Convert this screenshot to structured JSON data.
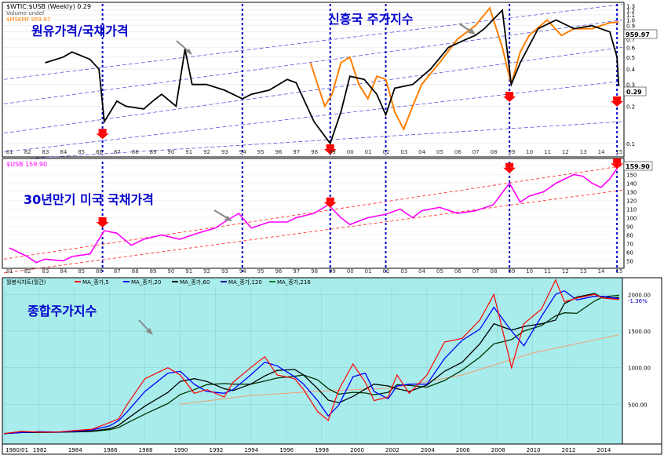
{
  "panel1": {
    "header_lines": [
      "$WTIC:$USB (Weekly) 0.29",
      "Volume undef",
      "$MSEMF 959.97"
    ],
    "annotation_oil": "원유가격/국채가격",
    "annotation_em": "신흥국 주가지수",
    "last_value_label": "959.97",
    "ratio_value_label": "0.29",
    "colors": {
      "ratio": "#000000",
      "em": "#ff7f00",
      "highlight": "#ff0000",
      "marker": "#ff0000",
      "dashed": "#0000cc"
    }
  },
  "panel2": {
    "header": "$USB 159.90",
    "annotation": "30년만기 미국 국채가격",
    "last_value_label": "159.90",
    "colors": {
      "line": "#ff00ff",
      "channel": "#ff3333"
    }
  },
  "panel3": {
    "header": "월봉식차트(월간)",
    "legend": [
      {
        "label": "MA_종가,5",
        "color": "#ff0000"
      },
      {
        "label": "MA_종가,20",
        "color": "#0000ff"
      },
      {
        "label": "MA_종가,60",
        "color": "#000000"
      },
      {
        "label": "MA_종가,120",
        "color": "#0000aa"
      },
      {
        "label": "MA_종가,216",
        "color": "#008000"
      }
    ],
    "annotation": "종합주가지수",
    "value_labels": [
      "2000.00",
      "1500.00",
      "1000.00",
      "500.00"
    ],
    "side_small_labels": [
      "-1.36%"
    ],
    "background": "#a9ecec"
  },
  "chart_data": [
    {
      "type": "line",
      "title": "$WTIC:$USB (Weekly) 0.29",
      "axis_scale": "log",
      "x_tick_labels": [
        "81",
        "82",
        "83",
        "84",
        "85",
        "86",
        "87",
        "88",
        "89",
        "90",
        "91",
        "92",
        "93",
        "94",
        "95",
        "96",
        "97",
        "98",
        "99",
        "00",
        "01",
        "02",
        "03",
        "04",
        "05",
        "06",
        "07",
        "08",
        "09",
        "10",
        "11",
        "12",
        "13",
        "14",
        "15"
      ],
      "y_tick_labels": [
        "1.3",
        "1.2",
        "1.1",
        "1.0",
        "0.9",
        "0.8",
        "0.7",
        "0.6",
        "0.5",
        "0.4",
        "0.3",
        "0.2",
        "0.1"
      ],
      "ylim": [
        0.08,
        1.35
      ],
      "series": [
        {
          "name": "$WTIC:$USB",
          "x": [
            1983.0,
            1984.0,
            1984.5,
            1985.5,
            1986.0,
            1986.3,
            1987.0,
            1987.5,
            1988.5,
            1989.0,
            1989.5,
            1990.3,
            1990.8,
            1991.2,
            1992.0,
            1993.0,
            1994.0,
            1994.5,
            1995.5,
            1996.5,
            1997.0,
            1998.0,
            1998.9,
            1999.5,
            2000.0,
            2000.8,
            2001.5,
            2002.0,
            2002.5,
            2003.5,
            2004.5,
            2005.5,
            2006.5,
            2007.0,
            2007.5,
            2008.5,
            2009.0,
            2009.5,
            2010.5,
            2011.5,
            2012.5,
            2013.5,
            2014.0,
            2014.5,
            2014.9,
            2015.0
          ],
          "y": [
            0.45,
            0.5,
            0.55,
            0.48,
            0.4,
            0.15,
            0.22,
            0.2,
            0.19,
            0.22,
            0.25,
            0.2,
            0.58,
            0.3,
            0.3,
            0.27,
            0.23,
            0.25,
            0.27,
            0.33,
            0.31,
            0.15,
            0.1,
            0.18,
            0.35,
            0.33,
            0.25,
            0.17,
            0.28,
            0.3,
            0.4,
            0.6,
            0.7,
            0.75,
            0.85,
            1.2,
            0.3,
            0.45,
            0.85,
            1.0,
            0.85,
            0.9,
            0.85,
            0.8,
            0.5,
            0.29
          ]
        },
        {
          "name": "$MSEMF",
          "x": [
            1997.8,
            1998.2,
            1998.6,
            1999.0,
            1999.5,
            2000.0,
            2000.5,
            2001.0,
            2001.5,
            2002.0,
            2002.5,
            2003.0,
            2003.5,
            2004.0,
            2005.0,
            2006.0,
            2007.0,
            2007.8,
            2008.5,
            2009.0,
            2009.5,
            2010.0,
            2011.0,
            2011.8,
            2012.5,
            2013.5,
            2014.0,
            2014.5,
            2015.0
          ],
          "y": [
            0.45,
            0.3,
            0.2,
            0.25,
            0.45,
            0.5,
            0.3,
            0.23,
            0.35,
            0.33,
            0.18,
            0.13,
            0.2,
            0.3,
            0.45,
            0.7,
            0.9,
            1.25,
            0.6,
            0.3,
            0.55,
            0.75,
            1.0,
            0.75,
            0.85,
            0.85,
            0.9,
            0.95,
            0.96
          ]
        }
      ],
      "markers_years": [
        1986.2,
        1998.9,
        2008.9,
        2014.9
      ]
    },
    {
      "type": "line",
      "title": "$USB 159.90",
      "x_tick_labels": [
        "81",
        "82",
        "83",
        "84",
        "85",
        "86",
        "87",
        "88",
        "89",
        "90",
        "91",
        "92",
        "93",
        "94",
        "95",
        "96",
        "97",
        "98",
        "99",
        "00",
        "01",
        "02",
        "03",
        "04",
        "05",
        "06",
        "07",
        "08",
        "09",
        "10",
        "11",
        "12",
        "13",
        "14",
        "15"
      ],
      "y_tick_labels": [
        "160",
        "150",
        "140",
        "130",
        "120",
        "110",
        "100",
        "90",
        "80",
        "70",
        "60",
        "50"
      ],
      "ylim": [
        45,
        165
      ],
      "series": [
        {
          "name": "$USB",
          "x": [
            1981.0,
            1981.5,
            1982.0,
            1982.5,
            1983.0,
            1984.0,
            1984.5,
            1985.5,
            1986.0,
            1986.3,
            1987.0,
            1987.8,
            1988.5,
            1989.5,
            1990.5,
            1991.5,
            1992.5,
            1993.0,
            1993.8,
            1994.5,
            1995.5,
            1996.5,
            1997.0,
            1998.0,
            1998.8,
            1999.5,
            2000.0,
            2001.0,
            2002.0,
            2002.8,
            2003.5,
            2004.0,
            2005.0,
            2006.0,
            2007.0,
            2008.0,
            2008.9,
            2009.5,
            2010.0,
            2010.8,
            2011.5,
            2012.0,
            2012.5,
            2013.0,
            2013.5,
            2014.0,
            2014.5,
            2015.0
          ],
          "y": [
            65,
            60,
            55,
            48,
            52,
            50,
            55,
            58,
            75,
            85,
            82,
            68,
            75,
            80,
            75,
            82,
            88,
            95,
            105,
            88,
            95,
            95,
            100,
            105,
            115,
            100,
            92,
            100,
            104,
            110,
            100,
            108,
            112,
            105,
            108,
            115,
            140,
            118,
            125,
            130,
            140,
            145,
            150,
            148,
            140,
            135,
            145,
            160
          ]
        }
      ],
      "markers_years": [
        1986.2,
        1998.9,
        2008.9,
        2014.9
      ]
    },
    {
      "type": "line",
      "title": "월봉식차트(월간)",
      "x_tick_labels": [
        "1980/01",
        "1982",
        "1984",
        "1986",
        "1988",
        "1990",
        "1992",
        "1994",
        "1996",
        "1998",
        "2000",
        "2002",
        "2004",
        "2006",
        "2008",
        "2010",
        "2012",
        "2014"
      ],
      "y_tick_labels": [
        "2000.00",
        "1500.00",
        "1000.00",
        "500.00"
      ],
      "ylim": [
        0,
        2100
      ],
      "series": [
        {
          "name": "종합주가지수",
          "x": [
            1980.0,
            1981.0,
            1982.0,
            1983.0,
            1984.0,
            1985.0,
            1986.0,
            1986.5,
            1987.0,
            1988.0,
            1989.3,
            1990.0,
            1990.8,
            1991.5,
            1992.5,
            1993.0,
            1994.0,
            1994.8,
            1995.5,
            1996.5,
            1997.0,
            1997.8,
            1998.4,
            1999.0,
            1999.8,
            2000.5,
            2001.0,
            2001.8,
            2002.3,
            2003.0,
            2004.0,
            2005.0,
            2006.0,
            2007.0,
            2007.8,
            2008.8,
            2009.5,
            2010.5,
            2011.3,
            2011.8,
            2012.5,
            2013.5,
            2014.0,
            2014.9
          ],
          "y": [
            100,
            130,
            120,
            120,
            140,
            160,
            250,
            300,
            500,
            850,
            1000,
            900,
            650,
            700,
            600,
            800,
            1000,
            1150,
            900,
            850,
            700,
            400,
            280,
            700,
            1050,
            800,
            550,
            600,
            900,
            650,
            900,
            1350,
            1400,
            1650,
            2000,
            1000,
            1600,
            1800,
            2200,
            1900,
            1950,
            2000,
            1950,
            1930
          ]
        },
        {
          "name": "MA_종가,216",
          "x": [
            1990.0,
            1994.0,
            1998.0,
            2002.0,
            2006.0,
            2010.0,
            2014.9
          ],
          "y": [
            500,
            620,
            680,
            720,
            900,
            1200,
            1450
          ]
        }
      ]
    }
  ]
}
